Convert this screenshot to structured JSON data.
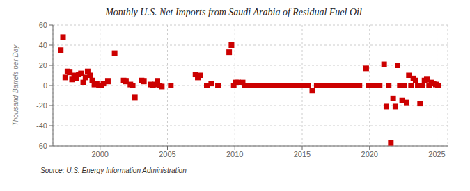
{
  "chart_data": {
    "type": "scatter",
    "title": "Monthly U.S. Net Imports from Saudi Arabia of Residual Fuel Oil",
    "ylabel": "Thousand Barrels per Day",
    "annotation": "Source: U.S. Energy Information Administration",
    "xlim": [
      1996.5,
      2025.8
    ],
    "ylim": [
      -60,
      60
    ],
    "xticks": [
      2000,
      2005,
      2010,
      2015,
      2020,
      2025
    ],
    "yticks": [
      -60,
      -40,
      -20,
      0,
      20,
      40,
      60
    ],
    "grid": true,
    "color": "#cc0000",
    "marker": "square",
    "x": [
      1997.08,
      1997.25,
      1997.42,
      1997.58,
      1997.75,
      1997.92,
      1998.08,
      1998.25,
      1998.42,
      1998.58,
      1998.75,
      1998.92,
      1999.08,
      1999.25,
      1999.42,
      1999.58,
      1999.75,
      1999.92,
      2000.08,
      2000.25,
      2000.58,
      2001.08,
      2001.75,
      2001.92,
      2002.25,
      2002.42,
      2002.58,
      2003.08,
      2003.25,
      2003.75,
      2003.92,
      2004.08,
      2004.25,
      2004.42,
      2004.58,
      2005.25,
      2007.08,
      2007.25,
      2007.42,
      2007.92,
      2008.25,
      2008.75,
      2009.58,
      2009.75,
      2009.92,
      2010.08,
      2010.25,
      2010.58,
      2010.75,
      2010.92,
      2011.08,
      2011.25,
      2011.42,
      2011.58,
      2011.75,
      2011.92,
      2012.08,
      2012.25,
      2012.42,
      2012.58,
      2012.75,
      2012.92,
      2013.08,
      2013.25,
      2013.42,
      2013.58,
      2013.75,
      2013.92,
      2014.08,
      2014.25,
      2014.42,
      2014.58,
      2014.75,
      2014.92,
      2015.08,
      2015.25,
      2015.42,
      2015.75,
      2016.08,
      2016.25,
      2016.42,
      2016.58,
      2016.75,
      2017.08,
      2017.25,
      2017.58,
      2017.75,
      2017.92,
      2018.08,
      2018.25,
      2018.42,
      2018.58,
      2018.75,
      2019.08,
      2019.25,
      2019.75,
      2019.92,
      2020.08,
      2020.42,
      2020.75,
      2021.08,
      2021.25,
      2021.42,
      2021.58,
      2021.75,
      2021.92,
      2022.08,
      2022.25,
      2022.42,
      2022.58,
      2022.75,
      2022.92,
      2023.08,
      2023.25,
      2023.42,
      2023.58,
      2023.75,
      2023.92,
      2024.08,
      2024.25,
      2024.42,
      2024.58,
      2024.75,
      2024.92,
      2025.08
    ],
    "values": [
      35,
      48,
      8,
      14,
      13,
      6,
      10,
      7,
      11,
      12,
      3,
      8,
      14,
      10,
      5,
      1,
      2,
      0,
      0,
      2,
      4,
      32,
      5,
      4,
      1,
      0,
      -12,
      5,
      4,
      1,
      0,
      1,
      4,
      0,
      -1,
      0,
      11,
      8,
      10,
      0,
      2,
      0,
      33,
      40,
      0,
      3,
      3,
      3,
      0,
      0,
      0,
      0,
      0,
      0,
      0,
      0,
      0,
      0,
      0,
      0,
      0,
      0,
      0,
      0,
      0,
      0,
      0,
      0,
      0,
      0,
      0,
      0,
      0,
      0,
      0,
      0,
      0,
      -5,
      0,
      0,
      0,
      0,
      0,
      0,
      0,
      0,
      0,
      0,
      0,
      0,
      0,
      0,
      0,
      0,
      0,
      17,
      0,
      0,
      0,
      0,
      21,
      -21,
      0,
      -57,
      -13,
      -21,
      20,
      0,
      -15,
      0,
      -17,
      10,
      0,
      7,
      5,
      0,
      -18,
      0,
      5,
      6,
      0,
      3,
      2,
      1,
      0
    ]
  }
}
